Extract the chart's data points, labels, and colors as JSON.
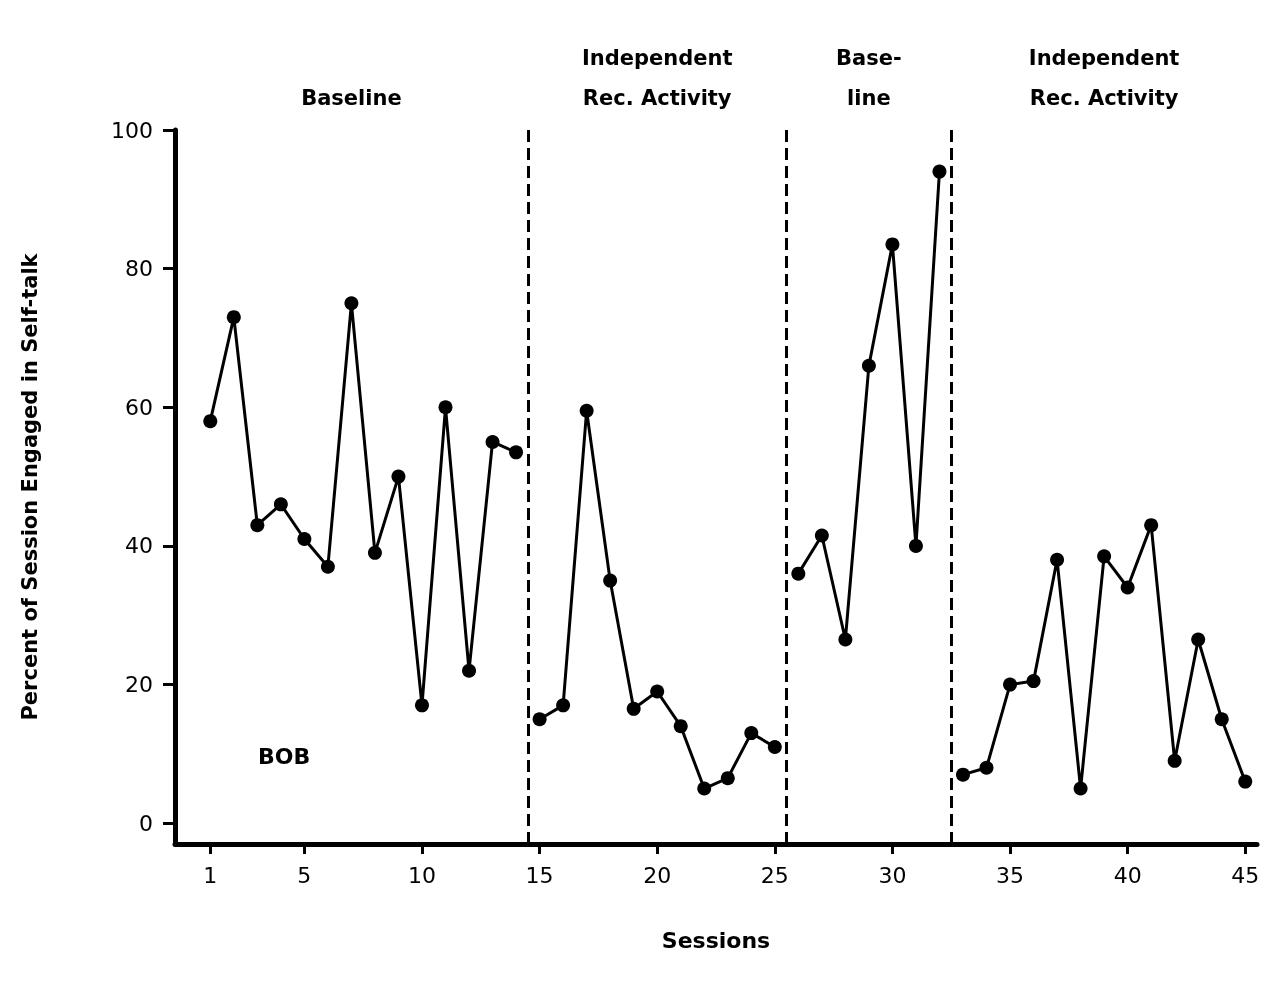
{
  "chart_data": {
    "type": "line",
    "xlabel": "Sessions",
    "ylabel": "Percent of Session Engaged in Self-talk",
    "series": [
      {
        "color": "#000000",
        "x": [
          1,
          2,
          3,
          4,
          5,
          6,
          7,
          8,
          9,
          10,
          11,
          12,
          13,
          14
        ],
        "values": [
          58,
          73,
          43,
          46,
          41,
          37,
          75,
          39,
          50,
          17,
          60,
          22,
          55,
          53.5
        ]
      },
      {
        "color": "#000000",
        "x": [
          15,
          16,
          17,
          18,
          19,
          20,
          21,
          22,
          23,
          24,
          25
        ],
        "values": [
          15,
          17,
          59.5,
          35,
          16.5,
          19,
          14,
          5,
          6.5,
          13,
          11
        ]
      },
      {
        "color": "#000000",
        "x": [
          26,
          27,
          28,
          29,
          30,
          31,
          32
        ],
        "values": [
          36,
          41.5,
          26.5,
          66,
          83.5,
          40,
          94
        ]
      },
      {
        "color": "#000000",
        "x": [
          33,
          34,
          35,
          36,
          37,
          38,
          39,
          40,
          41,
          42,
          43,
          44,
          45
        ],
        "values": [
          7,
          8,
          20,
          20.5,
          38,
          5,
          38.5,
          34,
          43,
          9,
          26.5,
          15,
          6
        ]
      }
    ],
    "xlim": [
      -0.5,
      45.5
    ],
    "xticks": [
      1,
      5,
      10,
      15,
      20,
      25,
      30,
      35,
      40,
      45
    ],
    "ylim": [
      -3,
      100
    ],
    "yticks": [
      0,
      20,
      40,
      60,
      80,
      100
    ],
    "ref_lines": [
      {
        "axis": "x",
        "value": 14.5,
        "line_style": "dashed"
      },
      {
        "axis": "x",
        "value": 25.5,
        "line_style": "dashed"
      },
      {
        "axis": "x",
        "value": 32.5,
        "line_style": "dashed"
      }
    ],
    "annotations": [
      "Baseline",
      "Independent\nRec. Activity",
      "Base-\nline",
      "Independent\nRec. Activity",
      "BOB"
    ],
    "marker": "circle",
    "line_style": "solid",
    "grid": false
  }
}
